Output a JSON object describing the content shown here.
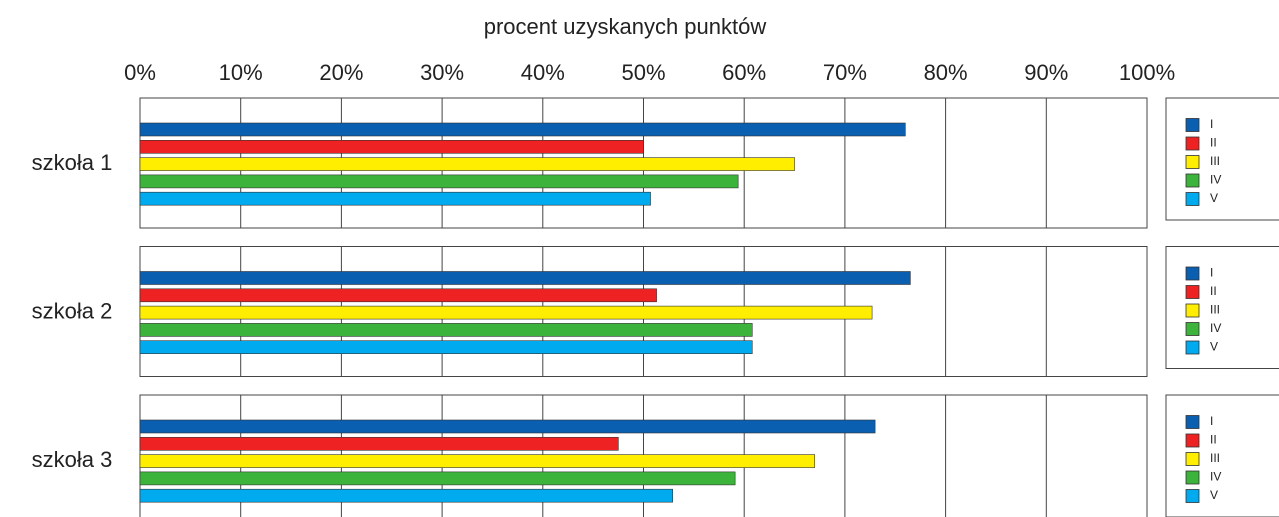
{
  "chart_data": {
    "type": "bar",
    "orientation": "horizontal",
    "title": "procent uzyskanych punktów",
    "categories": [
      "szkoła 1",
      "szkoła 2",
      "szkoła 3"
    ],
    "series": [
      {
        "name": "I",
        "color": "#0a5fb0",
        "values": [
          76,
          76.5,
          73
        ]
      },
      {
        "name": "II",
        "color": "#ee2222",
        "values": [
          50,
          51.3,
          47.5
        ]
      },
      {
        "name": "III",
        "color": "#ffee00",
        "values": [
          65,
          72.7,
          67
        ]
      },
      {
        "name": "IV",
        "color": "#3cb43c",
        "values": [
          59.4,
          60.8,
          59.1
        ]
      },
      {
        "name": "V",
        "color": "#00aaee",
        "values": [
          50.7,
          60.8,
          52.9
        ]
      }
    ],
    "xlim": [
      0,
      100
    ],
    "xticks": [
      {
        "value": 0,
        "label": "0%"
      },
      {
        "value": 10,
        "label": "10%"
      },
      {
        "value": 20,
        "label": "20%"
      },
      {
        "value": 30,
        "label": "30%"
      },
      {
        "value": 40,
        "label": "40%"
      },
      {
        "value": 50,
        "label": "50%"
      },
      {
        "value": 60,
        "label": "60%"
      },
      {
        "value": 70,
        "label": "70%"
      },
      {
        "value": 80,
        "label": "80%"
      },
      {
        "value": 90,
        "label": "90%"
      },
      {
        "value": 100,
        "label": "100%"
      }
    ],
    "grid": true
  }
}
